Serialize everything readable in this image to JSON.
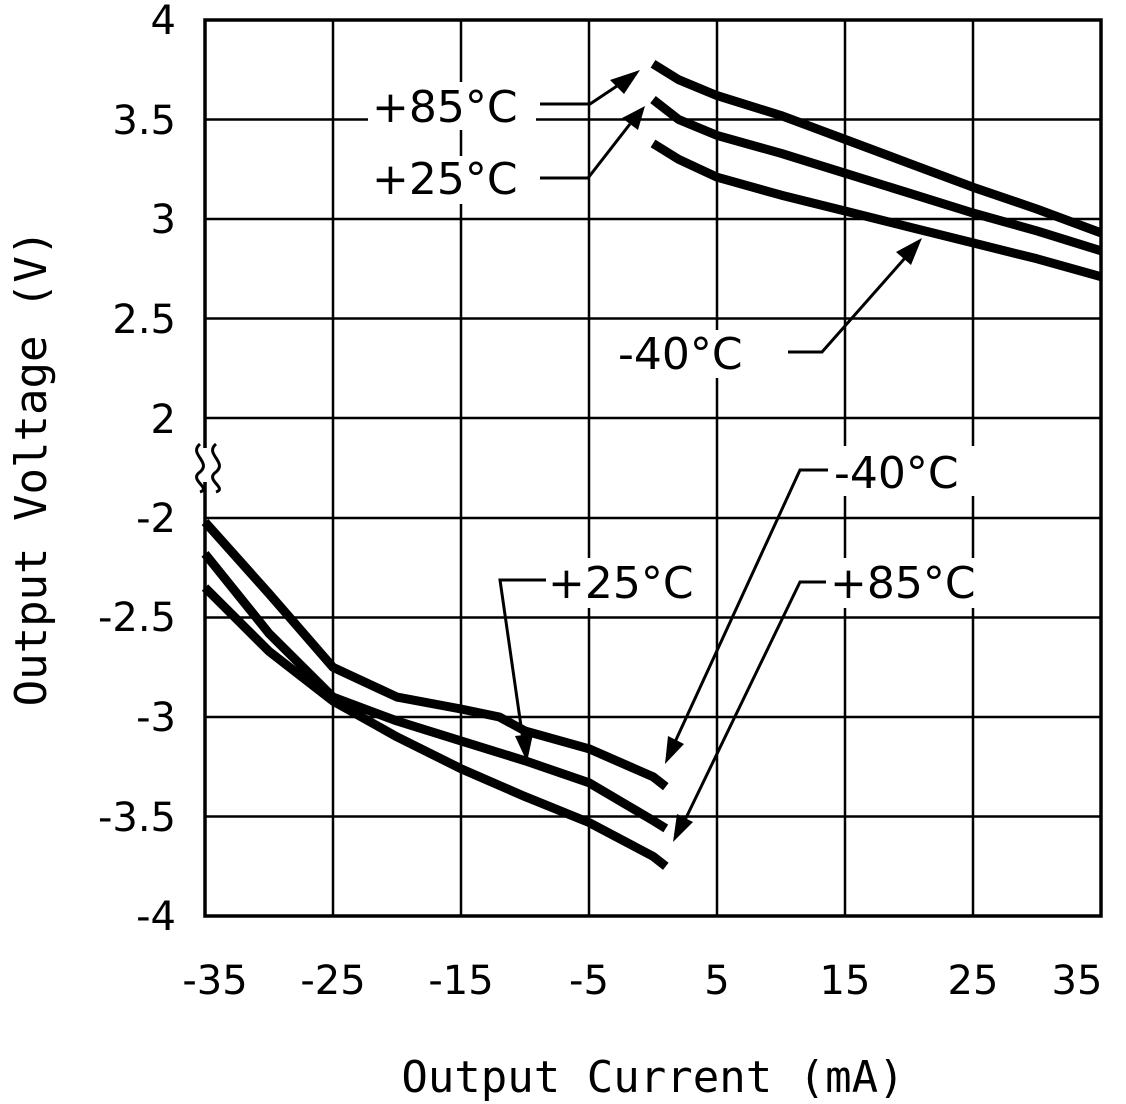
{
  "chart_data": {
    "type": "line",
    "title": "",
    "xlabel": "Output Current (mA)",
    "ylabel": "Output Voltage (V)",
    "xlim": [
      -35,
      35
    ],
    "x_ticks": [
      "-35",
      "-25",
      "-15",
      "-5",
      "5",
      "15",
      "25",
      "35"
    ],
    "x_tick_values": [
      -35,
      -25,
      -15,
      -5,
      5,
      15,
      25,
      35
    ],
    "y_tick_labels": [
      "4",
      "3.5",
      "3",
      "2.5",
      "2",
      "-2",
      "-2.5",
      "-3",
      "-3.5",
      "-4"
    ],
    "y_axis_break": "between 2 and -2",
    "grid": true,
    "series": [
      {
        "name": "+85°C",
        "group": "positive",
        "x": [
          0,
          2,
          5,
          10,
          15,
          20,
          25,
          30,
          35
        ],
        "y": [
          3.78,
          3.7,
          3.62,
          3.52,
          3.4,
          3.28,
          3.16,
          3.05,
          2.93
        ]
      },
      {
        "name": "+25°C",
        "group": "positive",
        "x": [
          0,
          2,
          5,
          10,
          15,
          20,
          25,
          30,
          35
        ],
        "y": [
          3.6,
          3.5,
          3.42,
          3.33,
          3.23,
          3.13,
          3.03,
          2.94,
          2.84
        ]
      },
      {
        "name": "-40°C",
        "group": "positive",
        "x": [
          0,
          2,
          5,
          10,
          15,
          20,
          25,
          30,
          35
        ],
        "y": [
          3.38,
          3.3,
          3.21,
          3.12,
          3.04,
          2.96,
          2.88,
          2.8,
          2.71
        ]
      },
      {
        "name": "-40°C",
        "group": "negative",
        "x": [
          -35,
          -30,
          -25,
          -20,
          -15,
          -12,
          -10,
          -5,
          0,
          1
        ],
        "y": [
          -2.02,
          -2.38,
          -2.75,
          -2.9,
          -2.96,
          -3.0,
          -3.07,
          -3.16,
          -3.3,
          -3.35
        ]
      },
      {
        "name": "+25°C",
        "group": "negative",
        "x": [
          -35,
          -30,
          -25,
          -20,
          -15,
          -10,
          -5,
          0,
          1
        ],
        "y": [
          -2.18,
          -2.58,
          -2.9,
          -3.02,
          -3.12,
          -3.22,
          -3.33,
          -3.52,
          -3.56
        ]
      },
      {
        "name": "+85°C",
        "group": "negative",
        "x": [
          -35,
          -30,
          -25,
          -20,
          -15,
          -10,
          -5,
          0,
          1
        ],
        "y": [
          -2.35,
          -2.67,
          -2.92,
          -3.1,
          -3.26,
          -3.4,
          -3.53,
          -3.7,
          -3.75
        ]
      }
    ],
    "annotations": [
      {
        "text": "+85°C",
        "points_to": "+85°C positive"
      },
      {
        "text": "+25°C",
        "points_to": "+25°C positive"
      },
      {
        "text": "-40°C",
        "points_to": "-40°C positive"
      },
      {
        "text": "-40°C",
        "points_to": "-40°C negative"
      },
      {
        "text": "+25°C",
        "points_to": "+25°C negative"
      },
      {
        "text": "+85°C",
        "points_to": "+85°C negative"
      }
    ]
  }
}
